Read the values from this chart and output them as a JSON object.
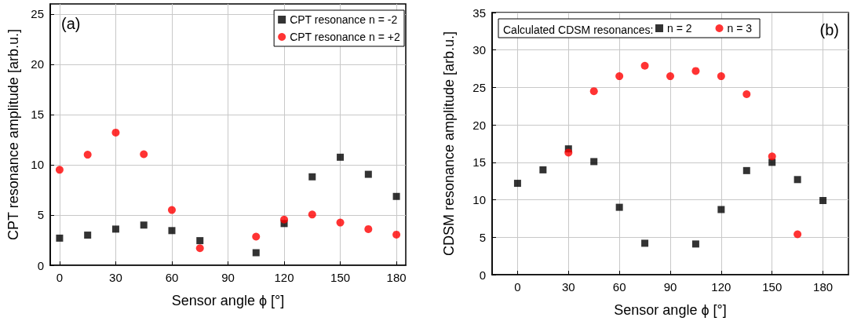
{
  "chart_data": [
    {
      "type": "scatter",
      "annotations": [
        "(a)"
      ],
      "xlabel": "Sensor angle ϕ [°]",
      "ylabel": "CPT resonance amplitude [arb.u.]",
      "x": [
        0,
        15,
        30,
        45,
        60,
        75,
        105,
        120,
        135,
        150,
        165,
        180
      ],
      "series": [
        {
          "name": "CPT resonance n = -2",
          "color": "#000000",
          "marker": "square",
          "values": [
            2.7,
            3.0,
            3.6,
            4.0,
            3.45,
            2.45,
            1.25,
            4.15,
            8.8,
            10.75,
            9.05,
            6.85
          ]
        },
        {
          "name": "CPT resonance n = +2",
          "color": "#ff0000",
          "marker": "circle",
          "values": [
            9.5,
            11.0,
            13.2,
            11.05,
            5.5,
            1.7,
            2.85,
            4.55,
            5.05,
            4.25,
            3.6,
            3.05
          ]
        }
      ],
      "xlim": [
        -5,
        185
      ],
      "xticks": [
        0,
        30,
        60,
        90,
        120,
        150,
        180
      ],
      "ylim": [
        0,
        26
      ],
      "yticks": [
        0,
        5,
        10,
        15,
        20,
        25
      ],
      "grid": true,
      "legend": "top right"
    },
    {
      "type": "scatter",
      "annotations": [
        "(b)"
      ],
      "xlabel": "Sensor angle ϕ [°]",
      "ylabel": "CDSM resonance amplitude [arb.u.]",
      "legend_title": "Calculated CDSM resonances:",
      "x": [
        0,
        15,
        30,
        45,
        60,
        75,
        90,
        105,
        120,
        135,
        150,
        165,
        180
      ],
      "series": [
        {
          "name": "n = 2",
          "color": "#000000",
          "marker": "square",
          "values": [
            12.2,
            14.0,
            16.8,
            15.1,
            9.0,
            4.2,
            null,
            4.1,
            8.7,
            13.9,
            15.0,
            12.7,
            9.9
          ]
        },
        {
          "name": "n = 3",
          "color": "#ff0000",
          "marker": "circle",
          "values": [
            null,
            null,
            16.3,
            24.5,
            26.5,
            27.9,
            26.5,
            27.2,
            26.5,
            24.1,
            15.8,
            5.4,
            null
          ]
        }
      ],
      "xlim": [
        -15,
        195
      ],
      "xticks": [
        0,
        30,
        60,
        90,
        120,
        150,
        180
      ],
      "ylim": [
        0,
        35
      ],
      "yticks": [
        0,
        5,
        10,
        15,
        20,
        25,
        30,
        35
      ],
      "grid": true,
      "legend": "top"
    }
  ]
}
